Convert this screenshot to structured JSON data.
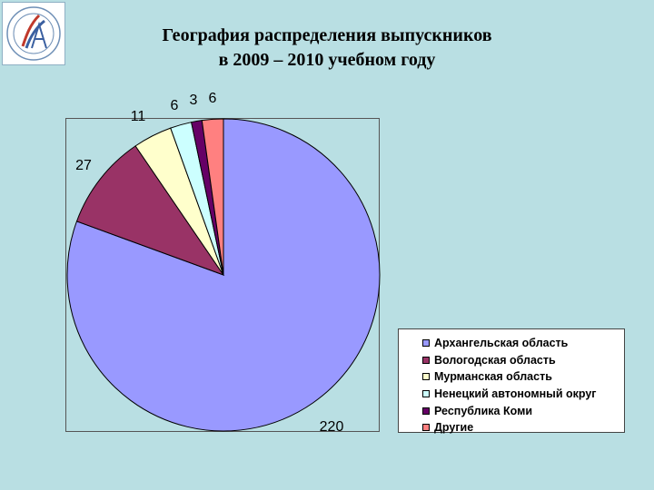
{
  "title": {
    "line1": "География распределения выпускников",
    "line2": "в 2009 – 2010 учебном году"
  },
  "chart_data": {
    "type": "pie",
    "start_angle": "12 o'clock",
    "direction": "clockwise",
    "legend_position": "bottom-right",
    "slices": [
      {
        "name": "Архангельская область",
        "value": 220,
        "label": "220",
        "color": "#9999ff"
      },
      {
        "name": "Вологодская область",
        "value": 27,
        "label": "27",
        "color": "#993366"
      },
      {
        "name": "Мурманская область",
        "value": 11,
        "label": "11",
        "color": "#ffffcc"
      },
      {
        "name": "Ненецкий автономный округ",
        "value": 6,
        "label": "6",
        "color": "#ccffff"
      },
      {
        "name": "Республика Коми",
        "value": 3,
        "label": "3",
        "color": "#660066"
      },
      {
        "name": "Другие",
        "value": 6,
        "label": "6",
        "color": "#ff8080"
      }
    ]
  }
}
